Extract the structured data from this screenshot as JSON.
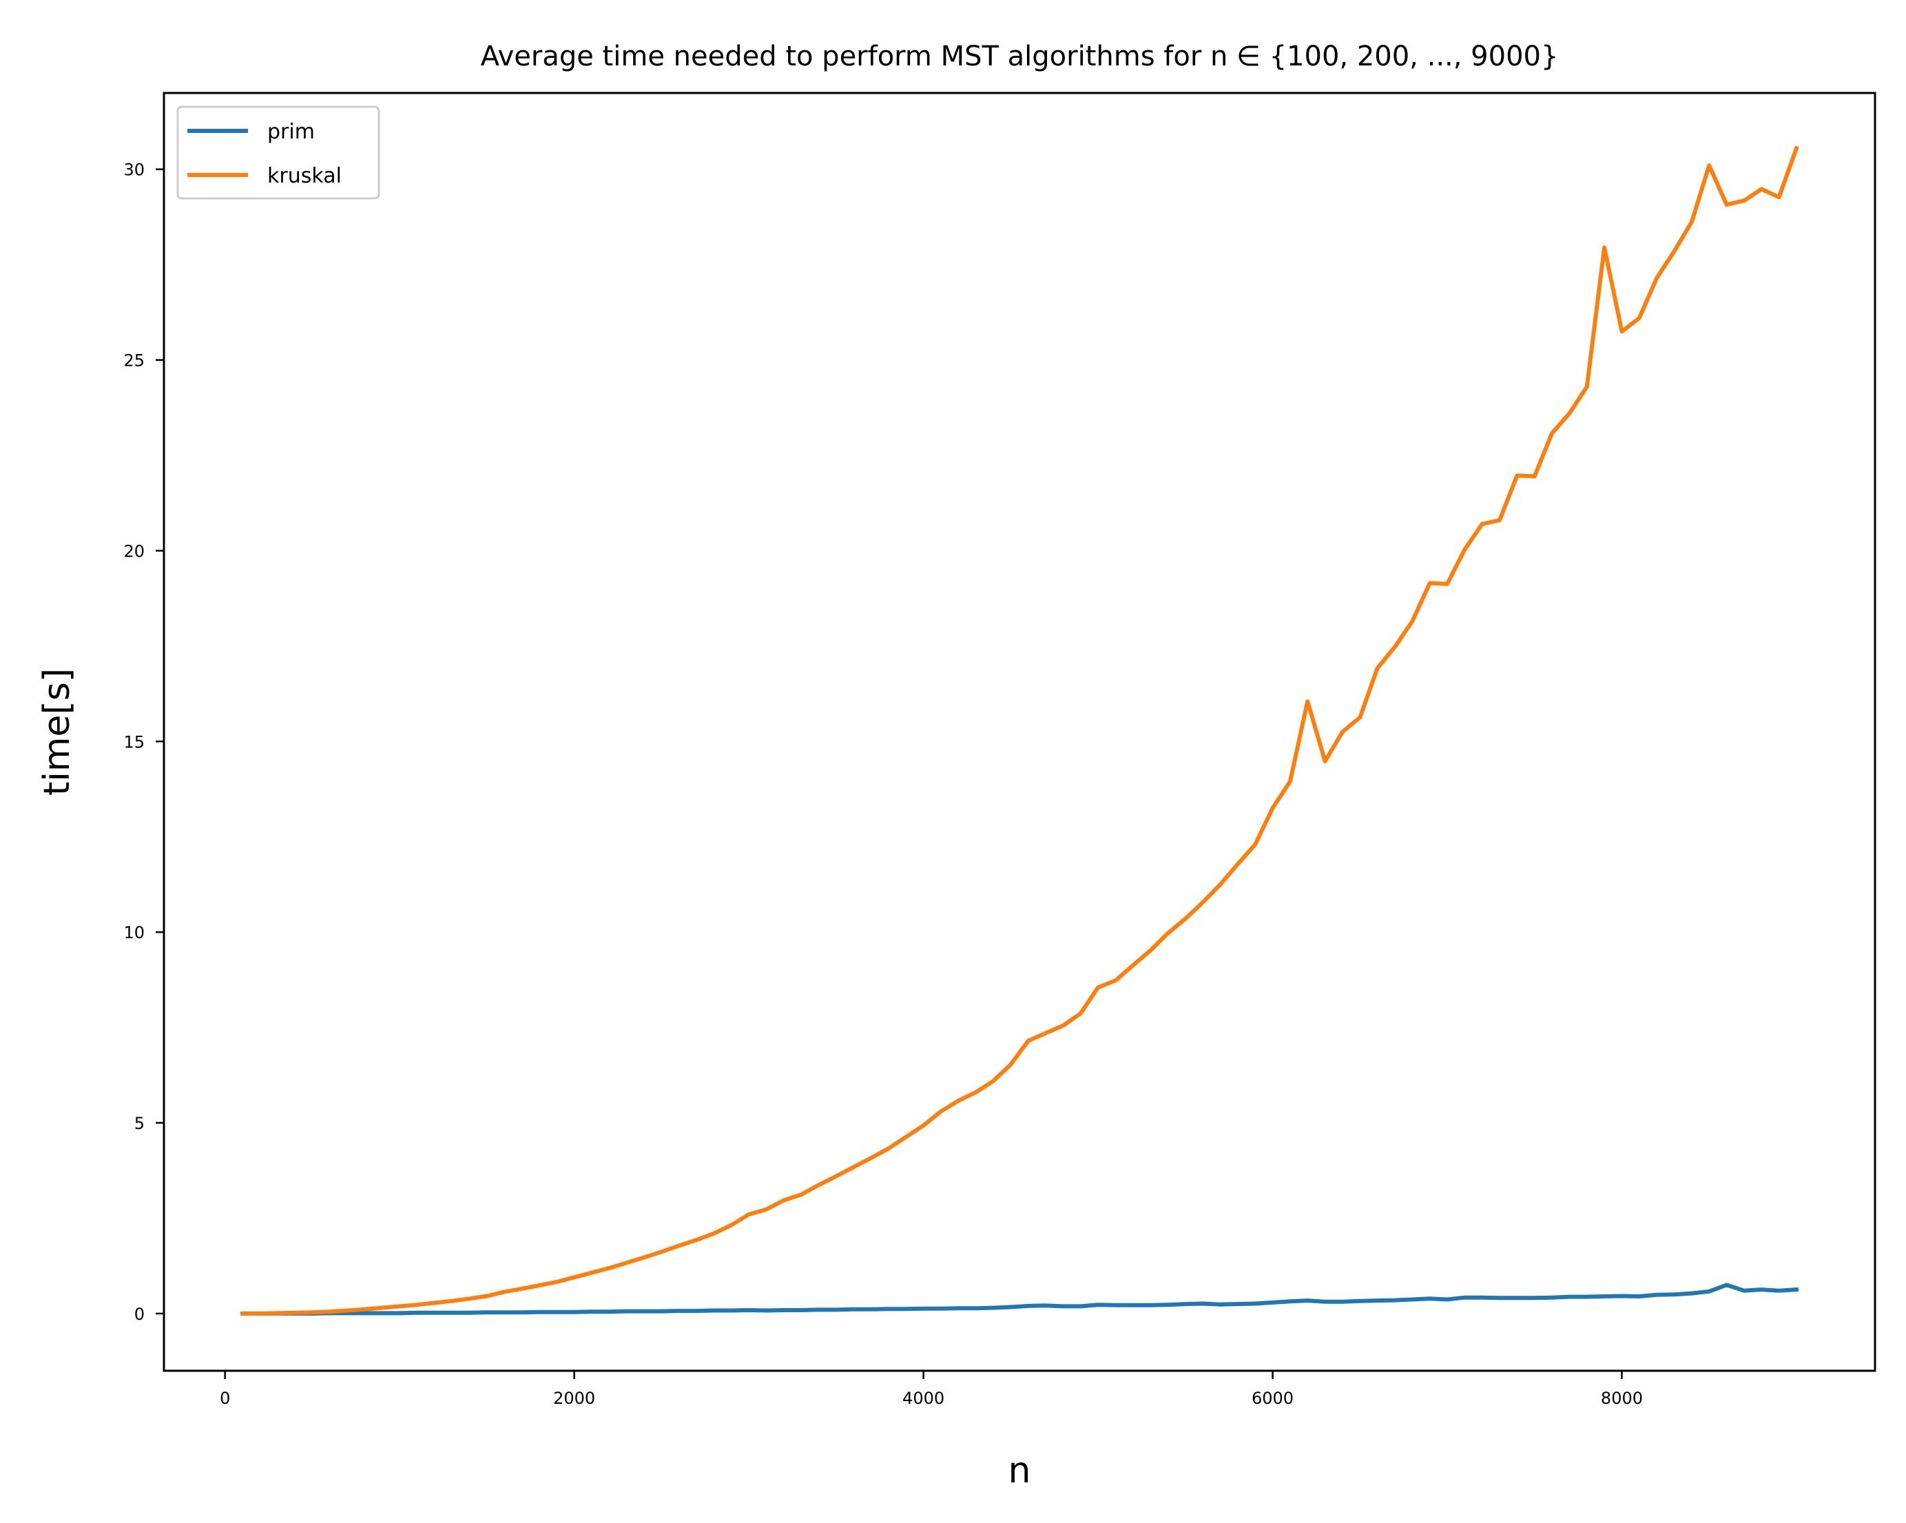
{
  "chart_data": {
    "type": "line",
    "title": "Average time needed to perform MST algorithms for n ∈ {100, 200, ..., 9000}",
    "xlabel": "n",
    "ylabel": "time[s]",
    "xlim": [
      -350,
      9450
    ],
    "ylim": [
      -1.5,
      32
    ],
    "xticks": [
      0,
      2000,
      4000,
      6000,
      8000
    ],
    "xtick_labels": [
      "0",
      "2000",
      "4000",
      "6000",
      "8000"
    ],
    "yticks": [
      0,
      5,
      10,
      15,
      20,
      25,
      30
    ],
    "ytick_labels": [
      "0",
      "5",
      "10",
      "15",
      "20",
      "25",
      "30"
    ],
    "grid": false,
    "legend_position": "upper-left",
    "x": [
      100,
      200,
      300,
      400,
      500,
      600,
      700,
      800,
      900,
      1000,
      1100,
      1200,
      1300,
      1400,
      1500,
      1600,
      1700,
      1800,
      1900,
      2000,
      2100,
      2200,
      2300,
      2400,
      2500,
      2600,
      2700,
      2800,
      2900,
      3000,
      3100,
      3200,
      3300,
      3400,
      3500,
      3600,
      3700,
      3800,
      3900,
      4000,
      4100,
      4200,
      4300,
      4400,
      4500,
      4600,
      4700,
      4800,
      4900,
      5000,
      5100,
      5200,
      5300,
      5400,
      5500,
      5600,
      5700,
      5800,
      5900,
      6000,
      6100,
      6200,
      6300,
      6400,
      6500,
      6600,
      6700,
      6800,
      6900,
      7000,
      7100,
      7200,
      7300,
      7400,
      7500,
      7600,
      7700,
      7800,
      7900,
      8000,
      8100,
      8200,
      8300,
      8400,
      8500,
      8600,
      8700,
      8800,
      8900,
      9000
    ],
    "series": [
      {
        "name": "prim",
        "color": "#1f77b4",
        "values": [
          0.0,
          0.0,
          0.0,
          0.0,
          0.0,
          0.01,
          0.01,
          0.01,
          0.01,
          0.01,
          0.02,
          0.02,
          0.02,
          0.02,
          0.03,
          0.03,
          0.03,
          0.04,
          0.04,
          0.04,
          0.05,
          0.05,
          0.06,
          0.06,
          0.06,
          0.07,
          0.07,
          0.08,
          0.08,
          0.09,
          0.08,
          0.09,
          0.09,
          0.1,
          0.1,
          0.11,
          0.11,
          0.12,
          0.12,
          0.13,
          0.13,
          0.14,
          0.14,
          0.15,
          0.17,
          0.2,
          0.21,
          0.19,
          0.19,
          0.23,
          0.22,
          0.22,
          0.22,
          0.23,
          0.25,
          0.26,
          0.24,
          0.25,
          0.26,
          0.29,
          0.32,
          0.34,
          0.31,
          0.31,
          0.33,
          0.34,
          0.35,
          0.37,
          0.39,
          0.37,
          0.42,
          0.42,
          0.41,
          0.41,
          0.41,
          0.42,
          0.44,
          0.44,
          0.45,
          0.46,
          0.45,
          0.49,
          0.5,
          0.53,
          0.58,
          0.75,
          0.6,
          0.63,
          0.6,
          0.63
        ]
      },
      {
        "name": "kruskal",
        "color": "#ff7f0e",
        "values": [
          0.0,
          0.0,
          0.01,
          0.02,
          0.03,
          0.05,
          0.08,
          0.11,
          0.15,
          0.19,
          0.23,
          0.28,
          0.33,
          0.39,
          0.46,
          0.57,
          0.65,
          0.74,
          0.83,
          0.95,
          1.07,
          1.19,
          1.33,
          1.47,
          1.62,
          1.78,
          1.93,
          2.1,
          2.32,
          2.6,
          2.73,
          2.97,
          3.12,
          3.37,
          3.6,
          3.84,
          4.08,
          4.33,
          4.63,
          4.93,
          5.3,
          5.58,
          5.8,
          6.1,
          6.53,
          7.15,
          7.35,
          7.55,
          7.87,
          8.55,
          8.73,
          9.13,
          9.52,
          9.97,
          10.35,
          10.78,
          11.25,
          11.78,
          12.3,
          13.25,
          13.95,
          16.05,
          14.48,
          15.25,
          15.63,
          16.92,
          17.48,
          18.15,
          19.15,
          19.13,
          20.03,
          20.7,
          20.8,
          21.97,
          21.95,
          23.08,
          23.6,
          24.3,
          27.95,
          25.75,
          26.1,
          27.15,
          27.85,
          28.62,
          30.1,
          29.07,
          29.18,
          29.48,
          29.27,
          30.55
        ]
      }
    ]
  }
}
